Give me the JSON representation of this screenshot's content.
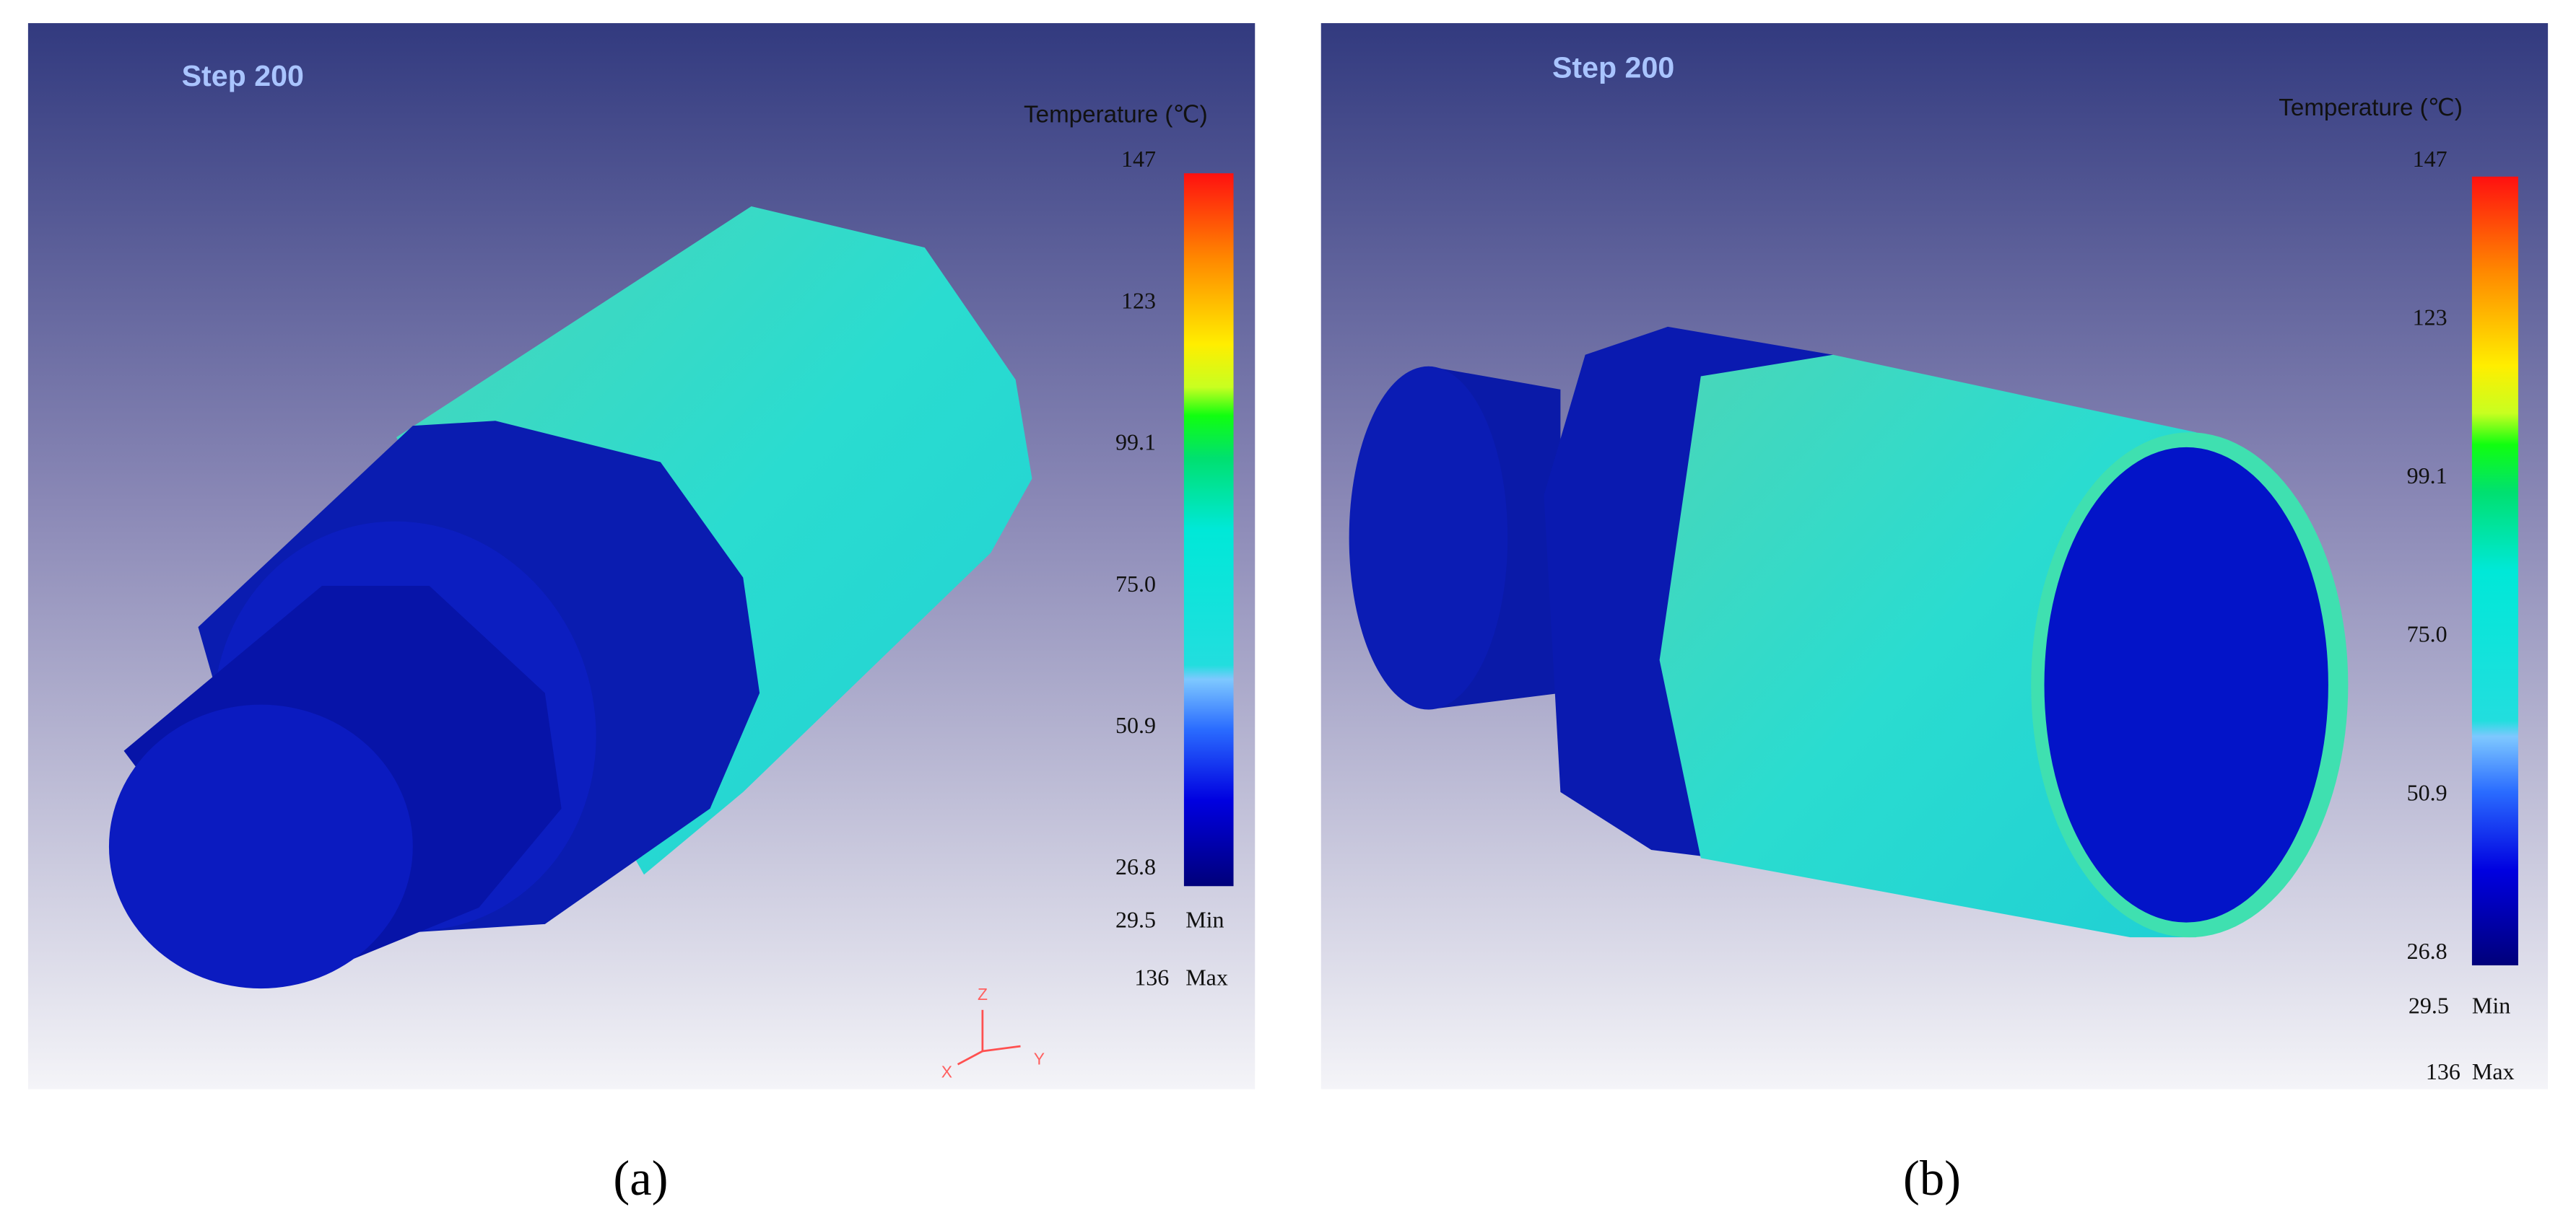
{
  "panels": [
    {
      "step": "Step  200",
      "legend_title": "Temperature (℃)",
      "scale_labels": [
        "147",
        "123",
        "99.1",
        "75.0",
        "50.9",
        "26.8"
      ],
      "min_value": "29.5",
      "min_label": "Min",
      "max_value": "136",
      "max_label": "Max",
      "axes": {
        "z": "Z",
        "x": "X",
        "y": "Y"
      },
      "caption": "(a)"
    },
    {
      "step": "Step  200",
      "legend_title": "Temperature (℃)",
      "scale_labels": [
        "147",
        "123",
        "99.1",
        "75.0",
        "50.9",
        "26.8"
      ],
      "min_value": "29.5",
      "min_label": "Min",
      "max_value": "136",
      "max_label": "Max",
      "caption": "(b)"
    }
  ]
}
